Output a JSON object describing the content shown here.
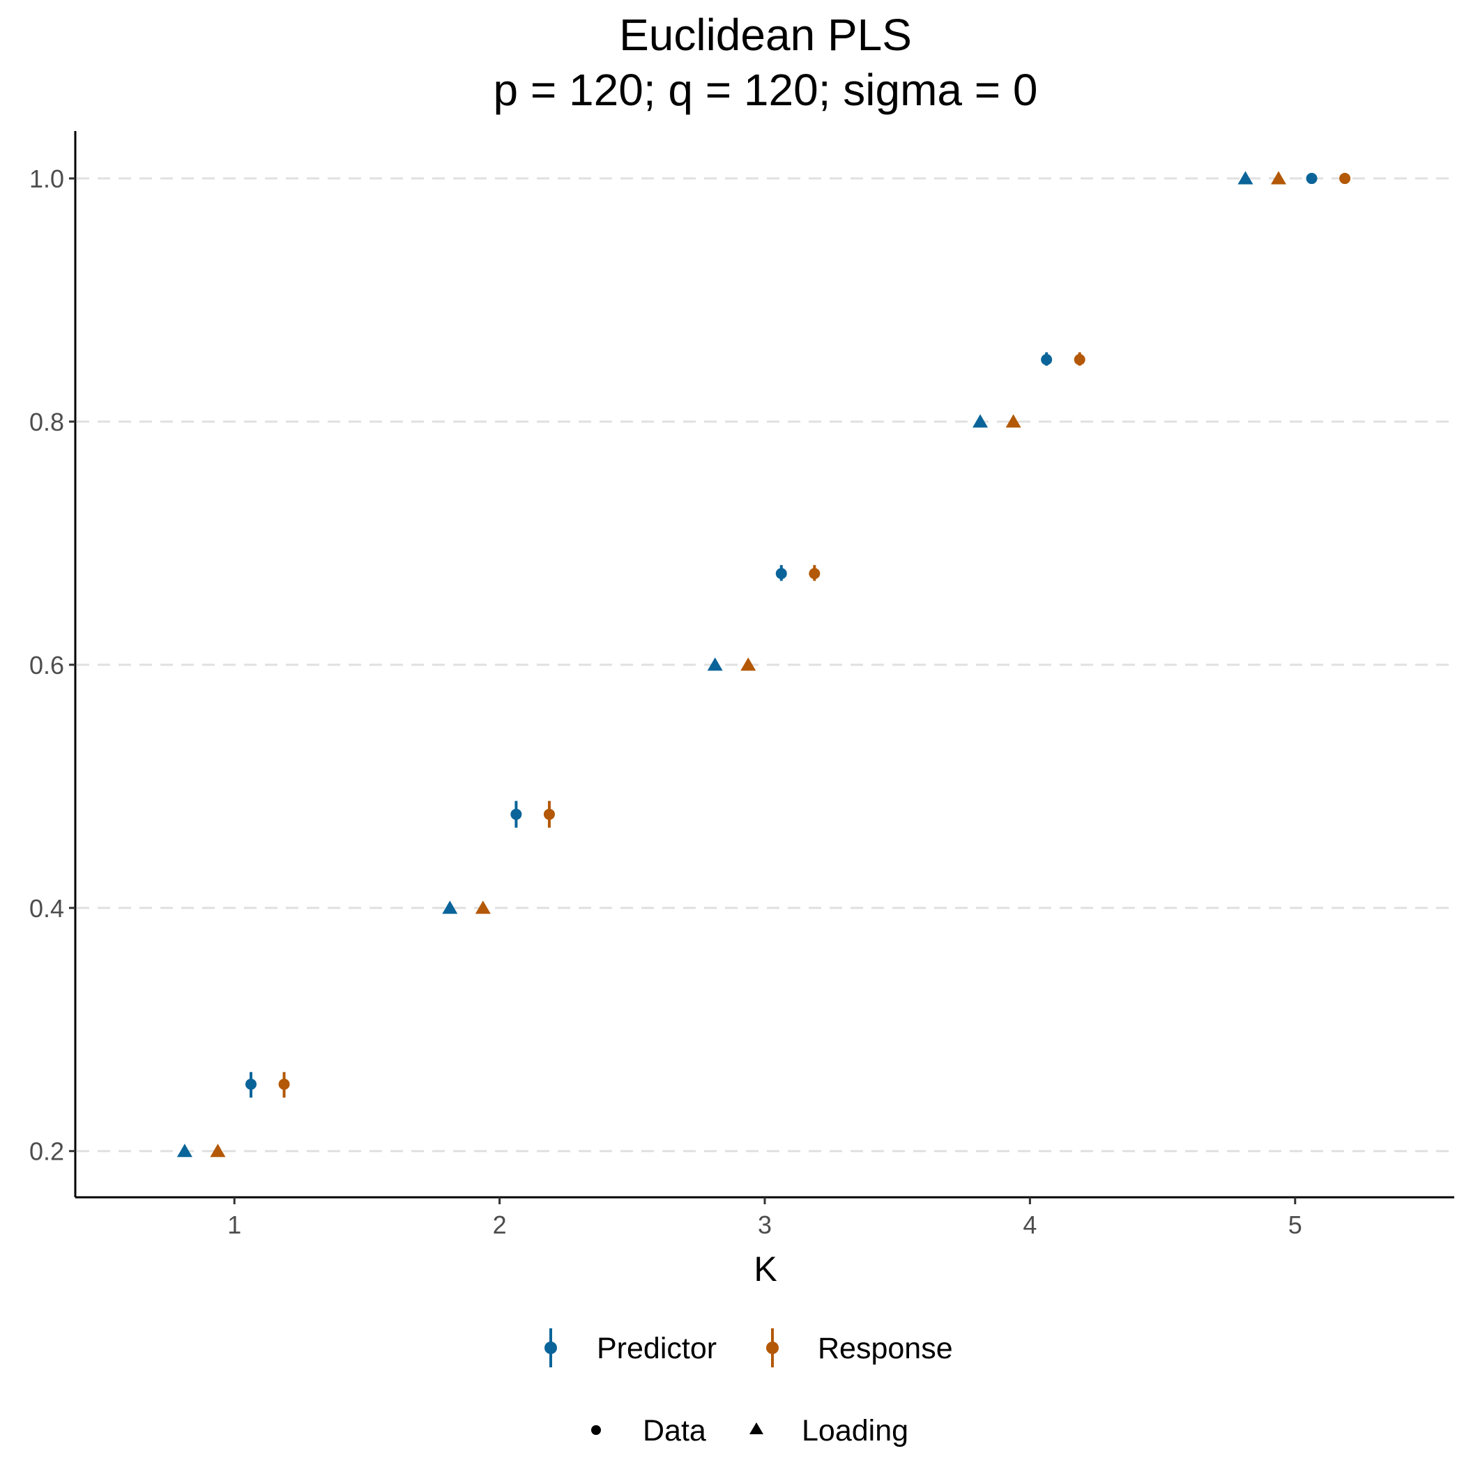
{
  "chart_data": {
    "type": "scatter",
    "title": "Euclidean PLS",
    "subtitle": "p = 120; q = 120; sigma = 0",
    "xlabel": "K",
    "ylabel": "",
    "x_ticks": [
      "1",
      "2",
      "3",
      "4",
      "5"
    ],
    "y_ticks": [
      "0.2",
      "0.4",
      "0.6",
      "0.8",
      "1.0"
    ],
    "xlim": [
      0.4,
      5.6
    ],
    "ylim": [
      0.162,
      1.039
    ],
    "grid": "horizontal dashed",
    "legend_position": "bottom",
    "series": [
      {
        "name": "Predictor",
        "shape_group": "Loading",
        "color": "#0a6499",
        "points": [
          {
            "k": 1,
            "y": 0.2
          },
          {
            "k": 2,
            "y": 0.4
          },
          {
            "k": 3,
            "y": 0.6
          },
          {
            "k": 4,
            "y": 0.8
          },
          {
            "k": 5,
            "y": 1.0
          }
        ]
      },
      {
        "name": "Response",
        "shape_group": "Loading",
        "color": "#b35806",
        "points": [
          {
            "k": 1,
            "y": 0.2
          },
          {
            "k": 2,
            "y": 0.4
          },
          {
            "k": 3,
            "y": 0.6
          },
          {
            "k": 4,
            "y": 0.8
          },
          {
            "k": 5,
            "y": 1.0
          }
        ]
      },
      {
        "name": "Predictor",
        "shape_group": "Data",
        "color": "#0a6499",
        "points": [
          {
            "k": 1,
            "y": 0.255,
            "ymin": 0.244,
            "ymax": 0.265
          },
          {
            "k": 2,
            "y": 0.477,
            "ymin": 0.466,
            "ymax": 0.488
          },
          {
            "k": 3,
            "y": 0.675,
            "ymin": 0.669,
            "ymax": 0.682
          },
          {
            "k": 4,
            "y": 0.851,
            "ymin": 0.846,
            "ymax": 0.857
          },
          {
            "k": 5,
            "y": 1.0
          }
        ]
      },
      {
        "name": "Response",
        "shape_group": "Data",
        "color": "#b35806",
        "points": [
          {
            "k": 1,
            "y": 0.255,
            "ymin": 0.244,
            "ymax": 0.265
          },
          {
            "k": 2,
            "y": 0.477,
            "ymin": 0.466,
            "ymax": 0.488
          },
          {
            "k": 3,
            "y": 0.675,
            "ymin": 0.669,
            "ymax": 0.682
          },
          {
            "k": 4,
            "y": 0.851,
            "ymin": 0.846,
            "ymax": 0.857
          },
          {
            "k": 5,
            "y": 1.0
          }
        ]
      }
    ],
    "legend": {
      "color": [
        {
          "label": "Predictor",
          "color": "#0a6499"
        },
        {
          "label": "Response",
          "color": "#b35806"
        }
      ],
      "shape": [
        {
          "label": "Data",
          "shape": "circle"
        },
        {
          "label": "Loading",
          "shape": "triangle"
        }
      ]
    }
  }
}
